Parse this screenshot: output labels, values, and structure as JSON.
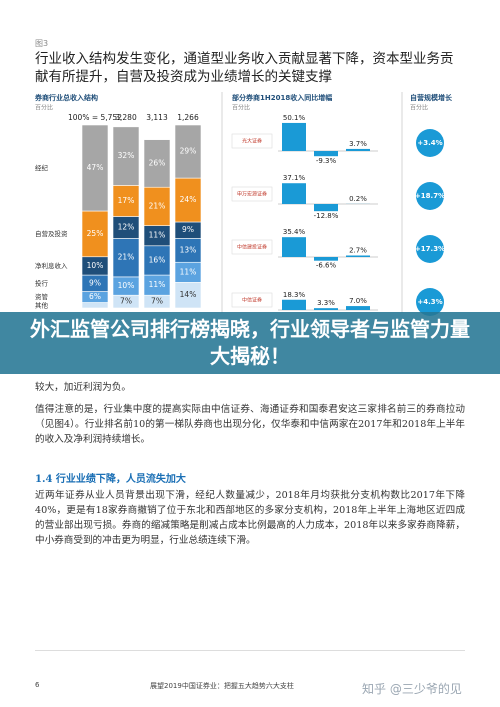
{
  "figure_label": "图3",
  "heading": "行业收入结构发生变化，通道型业务收入贡献显著下降，资本型业务贡献有所提升，自营及投资成为业绩增长的关键支撑",
  "revenue_structure": {
    "title": "券商行业总收入结构",
    "unit": "百分比",
    "totals": [
      "100% = 5,752",
      "3,280",
      "3,113",
      "1,266"
    ],
    "series": [
      {
        "name": "经纪",
        "color": "#a6a6a6",
        "values": [
          47,
          32,
          26,
          29
        ],
        "value_labels": [
          "47%",
          "32%",
          "26%",
          "29%"
        ]
      },
      {
        "name": "自营及投资",
        "color": "#f0901e",
        "values": [
          25,
          17,
          21,
          24
        ],
        "value_labels": [
          "25%",
          "17%",
          "21%",
          "24%"
        ]
      },
      {
        "name": "净利息收入",
        "color": "#1f4e79",
        "values": [
          10,
          12,
          11,
          9
        ],
        "value_labels": [
          "10%",
          "12%",
          "11%",
          "9%"
        ]
      },
      {
        "name": "投行",
        "color": "#2e75b6",
        "values": [
          9,
          21,
          16,
          13
        ],
        "value_labels": [
          "9%",
          "21%",
          "16%",
          "13%"
        ]
      },
      {
        "name": "资管",
        "color": "#5ba3e0",
        "values": [
          6,
          10,
          11,
          11
        ],
        "value_labels": [
          "6%",
          "10%",
          "11%",
          "11%"
        ]
      },
      {
        "name": "其他",
        "color": "#cfe4f6",
        "values": [
          3,
          7,
          7,
          14
        ],
        "value_labels": [
          null,
          "7%",
          "7%",
          "14%"
        ]
      }
    ]
  },
  "growth": {
    "title": "部分券商1H2018收入同比增幅",
    "unit": "百分比",
    "color": "#1a9ad6",
    "firms": [
      {
        "name": "光大证券",
        "values": [
          50.1,
          -9.3,
          3.7
        ],
        "value_labels": [
          "50.1%",
          "-9.3%",
          "3.7%"
        ]
      },
      {
        "name": "申万宏源证券",
        "values": [
          37.1,
          -12.8,
          0.2
        ],
        "value_labels": [
          "37.1%",
          "-12.8%",
          "0.2%"
        ]
      },
      {
        "name": "中信建投证券",
        "values": [
          35.4,
          -6.6,
          2.7
        ],
        "value_labels": [
          "35.4%",
          "-6.6%",
          "2.7%"
        ]
      },
      {
        "name": "中信证券",
        "values": [
          18.3,
          3.3,
          7.0
        ],
        "value_labels": [
          "18.3%",
          "3.3%",
          "7.0%"
        ]
      }
    ]
  },
  "proprietary": {
    "title": "自营规模增长",
    "unit": "百分比",
    "color": "#1a9ad6",
    "values": [
      3.4,
      18.7,
      17.3,
      4.3
    ],
    "value_labels": [
      "+3.4%",
      "+18.7%",
      "+17.3%",
      "+4.3%"
    ]
  },
  "banner": "外汇监管公司排行榜揭晓，行业领导者与监管力量大揭秘！",
  "body": {
    "fragment": "较大，加近利润为负。",
    "paragraph_1": "值得注意的是，行业集中度的提高实际由中信证券、海通证券和国泰君安这三家排名前三的券商拉动（见图4）。行业排名前10的第一梯队券商也出现分化，仅华泰和中信两家在2017年和2018年上半年的收入及净利润持续增长。",
    "subheading": "1.4 行业业绩下降，人员流失加大",
    "paragraph_2": "近两年证券从业人员背景出现下滑，经纪人数量减少，2018年月均获批分支机构数比2017年下降40%，更是有18家券商撤销了位于东北和西部地区的多家分支机构，2018年上半年上海地区近四成的营业部出现亏损。券商的缩减策略是削减占成本比例最高的人力成本，2018年以来多家券商降薪，中小券商受到的冲击更为明显，行业总绩连续下滑。"
  },
  "footer": {
    "page": "6",
    "text": "展望2019中国证券业：把握五大趋势六大支柱"
  },
  "watermark": "知乎 @三少爷的见"
}
